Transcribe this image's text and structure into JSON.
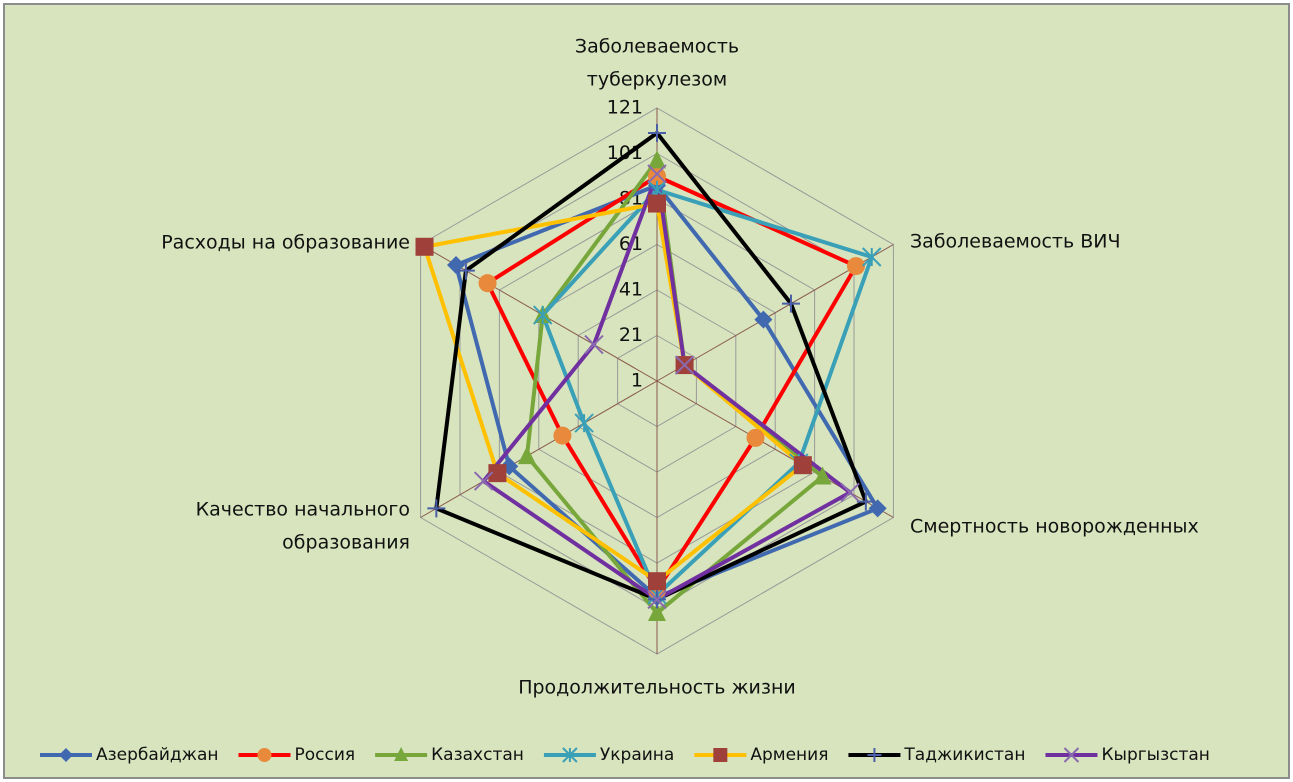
{
  "chart_data": {
    "type": "radar",
    "categories": [
      "Заболеваемость\nтуберкулезом",
      "Заболеваемость ВИЧ",
      "Смертность новорожденных",
      "Продолжительность жизни",
      "Качество начального\nобразования",
      "Расходы на образование"
    ],
    "ylim": [
      1,
      121
    ],
    "yticks": [
      1,
      21,
      41,
      61,
      81,
      101,
      121
    ],
    "grid": true,
    "legend": "bottom",
    "series": [
      {
        "name": "Азербайджан",
        "color": "#4169b0",
        "marker": "diamond",
        "marker_color": "#4169b0",
        "values": [
          87,
          55,
          113,
          96,
          76,
          103
        ]
      },
      {
        "name": "Россия",
        "color": "#ff0000",
        "marker": "circle",
        "marker_color": "#e8893c",
        "values": [
          91,
          102,
          51,
          93,
          49,
          87
        ]
      },
      {
        "name": "Казахстан",
        "color": "#77a63b",
        "marker": "triangle",
        "marker_color": "#77a63b",
        "values": [
          98,
          15,
          85,
          103,
          67,
          59
        ]
      },
      {
        "name": "Украина",
        "color": "#3aa0b8",
        "marker": "asterisk",
        "marker_color": "#3aa0b8",
        "values": [
          85,
          110,
          73,
          95,
          38,
          59
        ]
      },
      {
        "name": "Армения",
        "color": "#ffc000",
        "marker": "square",
        "marker_color": "#a0403a",
        "values": [
          79,
          15,
          75,
          89,
          82,
          119
        ]
      },
      {
        "name": "Таджикистан",
        "color": "#000000",
        "marker": "plus",
        "marker_color": "#4a5fa8",
        "values": [
          110,
          69,
          107,
          97,
          113,
          98
        ]
      },
      {
        "name": "Кыргызстан",
        "color": "#7030a0",
        "marker": "x",
        "marker_color": "#8a6bb0",
        "values": [
          92,
          15,
          99,
          97,
          89,
          33
        ]
      }
    ]
  }
}
